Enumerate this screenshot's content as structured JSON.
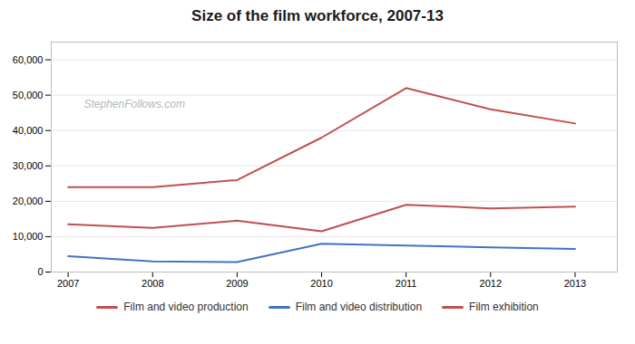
{
  "chart_data": {
    "type": "line",
    "title": "Size of the film workforce, 2007-13",
    "x": [
      2007,
      2008,
      2009,
      2010,
      2011,
      2012,
      2013
    ],
    "series": [
      {
        "name": "Film and video production",
        "color": "#c0504d",
        "values": [
          24000,
          24000,
          26000,
          38000,
          52000,
          46000,
          42000
        ]
      },
      {
        "name": "Film and video distribution",
        "color": "#4472c4",
        "values": [
          4500,
          3000,
          2800,
          8000,
          7500,
          7000,
          6500
        ]
      },
      {
        "name": "Film exhibition",
        "color": "#c0504d",
        "values": [
          13500,
          12500,
          14500,
          11500,
          19000,
          18000,
          18500
        ]
      }
    ],
    "xlim": [
      2006.8,
      2013.5
    ],
    "xticks": [
      2007,
      2008,
      2009,
      2010,
      2011,
      2012,
      2013
    ],
    "ylim": [
      0,
      65000
    ],
    "yticks": [
      0,
      {
        "value": 10000,
        "label": "10,000"
      },
      {
        "value": 20000,
        "label": "20,000"
      },
      {
        "value": 30000,
        "label": "30,000"
      },
      {
        "value": 40000,
        "label": "40,000"
      },
      {
        "value": 50000,
        "label": "50,000"
      },
      {
        "value": 60000,
        "label": "60,000"
      }
    ],
    "annotation": "StephenFollows.com",
    "grid": true,
    "legend": "bottom"
  }
}
